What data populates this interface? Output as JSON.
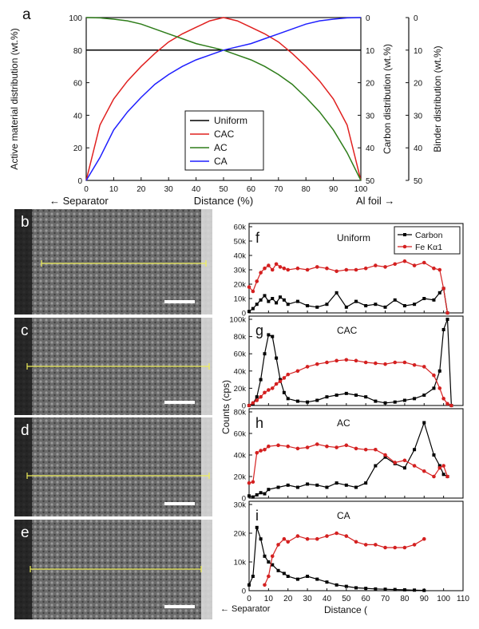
{
  "chart_data": [
    {
      "panel": "a",
      "type": "line",
      "xlabel": "Distance (%)",
      "ylabel": "Active material distribution (wt.%)",
      "y2label": "Carbon distribution (wt.%)",
      "y3label": "Binder distribution (wt.%)",
      "x_ticks": [
        0,
        10,
        20,
        30,
        40,
        50,
        60,
        70,
        80,
        90,
        100
      ],
      "y_ticks": [
        0,
        20,
        40,
        60,
        80,
        100
      ],
      "y2_ticks": [
        0,
        10,
        20,
        30,
        40,
        50
      ],
      "y3_ticks": [
        0,
        10,
        20,
        30,
        40,
        50
      ],
      "xlim": [
        0,
        100
      ],
      "ylim": [
        0,
        100
      ],
      "y2lim": [
        50,
        0
      ],
      "left_note": "← Separator",
      "right_note": "Al foil →",
      "legend_position": "center",
      "x": [
        0,
        5,
        10,
        15,
        20,
        25,
        30,
        35,
        40,
        45,
        50,
        55,
        60,
        65,
        70,
        75,
        80,
        85,
        90,
        95,
        100
      ],
      "series": [
        {
          "name": "Uniform",
          "color": "#000000",
          "values": [
            80,
            80,
            80,
            80,
            80,
            80,
            80,
            80,
            80,
            80,
            80,
            80,
            80,
            80,
            80,
            80,
            80,
            80,
            80,
            80,
            80
          ]
        },
        {
          "name": "CAC",
          "color": "#e0201f",
          "values": [
            0,
            34,
            50,
            61,
            70,
            78,
            85,
            90,
            94,
            98,
            100,
            98,
            94,
            90,
            85,
            78,
            70,
            61,
            50,
            34,
            0
          ]
        },
        {
          "name": "AC",
          "color": "#2e7d1a",
          "values": [
            100,
            99.8,
            99,
            98,
            96,
            93,
            90,
            87,
            84,
            82,
            80,
            77,
            74,
            70,
            65,
            59,
            51,
            42,
            31,
            17,
            0
          ]
        },
        {
          "name": "CA",
          "color": "#1f1fff",
          "values": [
            0,
            14,
            31,
            42,
            51,
            59,
            65,
            70,
            74,
            77,
            80,
            82,
            84,
            87,
            90,
            93,
            96,
            98,
            99,
            99.8,
            100
          ]
        }
      ]
    },
    {
      "panel": "f",
      "type": "line",
      "title": "Uniform",
      "ylim": [
        0,
        60
      ],
      "y_ticks": [
        "0",
        "10k",
        "20k",
        "30k",
        "40k",
        "50k",
        "60k"
      ],
      "legend": [
        "Carbon",
        "Fe Kα1"
      ],
      "x": [
        0,
        2,
        4,
        6,
        8,
        10,
        12,
        14,
        16,
        18,
        20,
        25,
        30,
        35,
        40,
        45,
        50,
        55,
        60,
        65,
        70,
        75,
        80,
        85,
        90,
        95,
        98,
        100,
        102
      ],
      "series": [
        {
          "name": "Carbon",
          "color": "#000000",
          "values": [
            1,
            3,
            6,
            9,
            12,
            8,
            10,
            7,
            11,
            9,
            6,
            8,
            5,
            4,
            6,
            14,
            4,
            8,
            5,
            6,
            4,
            9,
            5,
            6,
            10,
            9,
            14,
            17,
            0
          ]
        },
        {
          "name": "Fe Kα1",
          "color": "#d42020",
          "values": [
            18,
            15,
            22,
            28,
            31,
            33,
            30,
            34,
            32,
            31,
            30,
            31,
            30,
            32,
            31,
            29,
            30,
            30,
            31,
            33,
            32,
            34,
            36,
            33,
            35,
            31,
            30,
            17,
            0
          ]
        }
      ]
    },
    {
      "panel": "g",
      "type": "line",
      "title": "CAC",
      "ylim": [
        0,
        100
      ],
      "y_ticks": [
        "0",
        "20k",
        "40k",
        "60k",
        "80k",
        "100k"
      ],
      "x": [
        0,
        2,
        4,
        6,
        8,
        10,
        12,
        14,
        16,
        18,
        20,
        25,
        30,
        35,
        40,
        45,
        50,
        55,
        60,
        65,
        70,
        75,
        80,
        85,
        90,
        95,
        98,
        100,
        102,
        104
      ],
      "series": [
        {
          "name": "Carbon",
          "color": "#000000",
          "values": [
            0,
            2,
            10,
            30,
            60,
            82,
            80,
            55,
            30,
            15,
            8,
            5,
            4,
            6,
            10,
            12,
            14,
            12,
            10,
            5,
            3,
            4,
            6,
            8,
            12,
            20,
            40,
            88,
            100,
            0
          ]
        },
        {
          "name": "Fe Kα1",
          "color": "#d42020",
          "values": [
            0,
            3,
            6,
            10,
            15,
            18,
            20,
            25,
            28,
            32,
            36,
            40,
            45,
            48,
            50,
            52,
            53,
            52,
            50,
            49,
            48,
            50,
            50,
            47,
            45,
            35,
            20,
            8,
            2,
            0
          ]
        }
      ]
    },
    {
      "panel": "h",
      "type": "line",
      "title": "AC",
      "ylim": [
        0,
        80
      ],
      "y_ticks": [
        "0",
        "20k",
        "40k",
        "60k",
        "80k"
      ],
      "x": [
        0,
        2,
        4,
        6,
        8,
        10,
        15,
        20,
        25,
        30,
        35,
        40,
        45,
        50,
        55,
        60,
        65,
        70,
        75,
        80,
        85,
        90,
        95,
        98,
        100,
        102
      ],
      "series": [
        {
          "name": "Carbon",
          "color": "#000000",
          "values": [
            2,
            1,
            3,
            5,
            4,
            8,
            10,
            12,
            10,
            13,
            12,
            10,
            14,
            12,
            10,
            14,
            30,
            38,
            32,
            28,
            45,
            70,
            40,
            30,
            22,
            20
          ]
        },
        {
          "name": "Fe Kα1",
          "color": "#d42020",
          "values": [
            14,
            15,
            42,
            44,
            45,
            48,
            49,
            48,
            46,
            47,
            50,
            48,
            47,
            49,
            46,
            45,
            45,
            40,
            33,
            35,
            30,
            25,
            20,
            28,
            30,
            20
          ]
        }
      ]
    },
    {
      "panel": "i",
      "type": "line",
      "title": "CA",
      "ylim": [
        0,
        30
      ],
      "y_ticks": [
        "0",
        "10k",
        "20k",
        "30k"
      ],
      "xlabel": "Distance (",
      "ylabel": "Counts (cps)",
      "x_ticks": [
        0,
        10,
        20,
        30,
        40,
        50,
        60,
        70,
        80,
        90,
        100,
        110
      ],
      "xlim": [
        0,
        110
      ],
      "x": [
        0,
        2,
        4,
        6,
        8,
        10,
        12,
        15,
        18,
        20,
        25,
        30,
        35,
        40,
        45,
        50,
        55,
        60,
        65,
        70,
        75,
        80,
        85,
        90
      ],
      "series": [
        {
          "name": "Carbon",
          "color": "#000000",
          "values": [
            2,
            5,
            22,
            18,
            12,
            10,
            9,
            7,
            6,
            5,
            4,
            5,
            4,
            3,
            2,
            1.5,
            1,
            0.8,
            0.6,
            0.5,
            0.4,
            0.3,
            0.2,
            0.1
          ]
        },
        {
          "name": "Fe Kα1",
          "color": "#d42020",
          "values": [
            null,
            null,
            null,
            null,
            2,
            5,
            12,
            16,
            18,
            17,
            19,
            18,
            18,
            19,
            20,
            19,
            17,
            16,
            16,
            15,
            15,
            15,
            16,
            18
          ]
        }
      ]
    }
  ],
  "sem_panels": [
    {
      "letter": "b"
    },
    {
      "letter": "c"
    },
    {
      "letter": "d"
    },
    {
      "letter": "e"
    }
  ],
  "bottom_note": "← Separator"
}
